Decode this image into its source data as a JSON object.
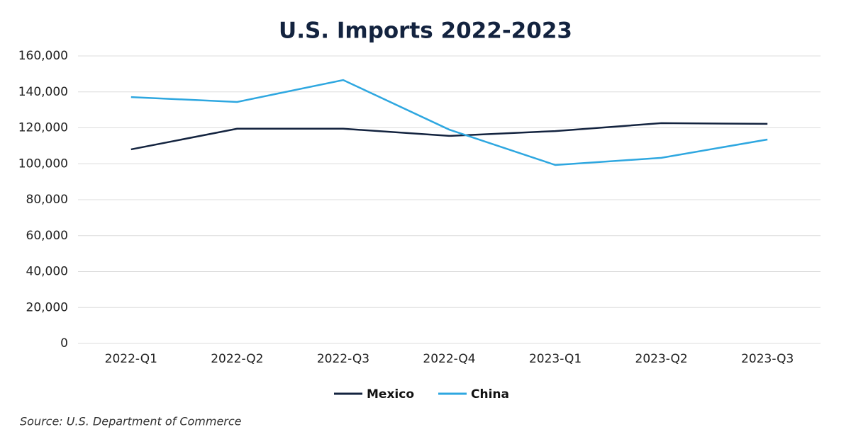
{
  "chart_data": {
    "type": "line",
    "title": "U.S. Imports 2022-2023",
    "categories": [
      "2022-Q1",
      "2022-Q2",
      "2022-Q3",
      "2022-Q4",
      "2023-Q1",
      "2023-Q2",
      "2023-Q3"
    ],
    "series": [
      {
        "name": "Mexico",
        "color": "#13233f",
        "values": [
          108000,
          119500,
          119500,
          115500,
          118200,
          122600,
          122200
        ]
      },
      {
        "name": "China",
        "color": "#2ea7e0",
        "values": [
          137100,
          134400,
          146600,
          119000,
          99300,
          103300,
          113500
        ]
      }
    ],
    "ylim": [
      0,
      160000
    ],
    "yticks": [
      0,
      {
        "value": 20000,
        "label": "20,000"
      },
      {
        "value": 40000,
        "label": "40,000"
      },
      {
        "value": 60000,
        "label": "60,000"
      },
      {
        "value": 80000,
        "label": "80,000"
      },
      {
        "value": 100000,
        "label": "100,000"
      },
      {
        "value": 120000,
        "label": "120,000"
      },
      {
        "value": 140000,
        "label": "140,000"
      },
      {
        "value": 160000,
        "label": "160,000"
      }
    ],
    "grid": true,
    "legend": "bottom",
    "source": "Source: U.S. Department of Commerce"
  }
}
